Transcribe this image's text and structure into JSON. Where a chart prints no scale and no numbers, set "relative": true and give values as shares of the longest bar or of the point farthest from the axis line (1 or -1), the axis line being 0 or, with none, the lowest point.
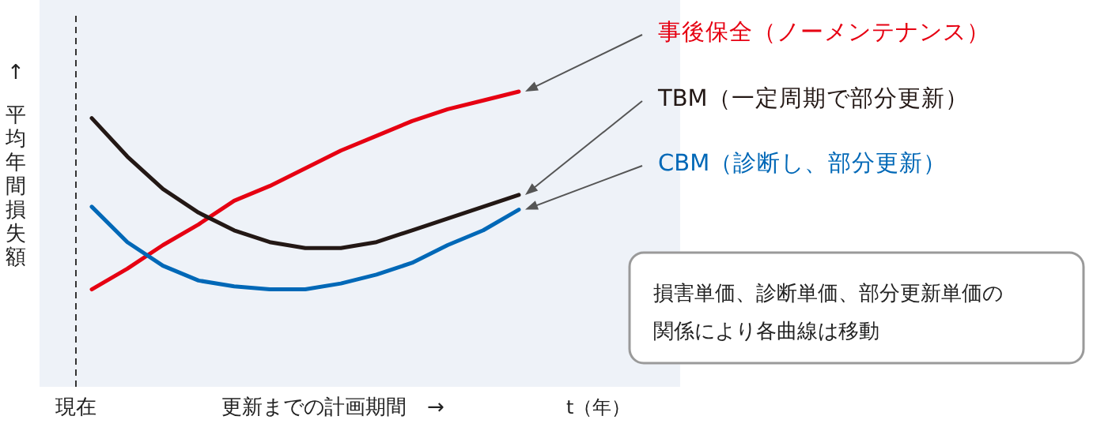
{
  "chart_data": {
    "type": "line",
    "relative": true,
    "ylabel": "↑ 平均年間損失額",
    "categories": [
      null,
      null,
      null,
      null,
      null,
      null,
      null,
      null,
      null,
      null,
      null,
      null,
      null
    ],
    "series": [
      {
        "name": "事後保全（ノーメンテナンス）",
        "color": "#e60012",
        "values": [
          0.33,
          0.4,
          0.48,
          0.55,
          0.63,
          0.68,
          0.74,
          0.8,
          0.85,
          0.9,
          0.94,
          0.97,
          1.0
        ]
      },
      {
        "name": "TBM（一定周期で部分更新）",
        "color": "#231815",
        "values": [
          0.91,
          0.78,
          0.67,
          0.59,
          0.53,
          0.49,
          0.47,
          0.47,
          0.49,
          0.53,
          0.57,
          0.61,
          0.65
        ]
      },
      {
        "name": "CBM（診断し、部分更新）",
        "color": "#0068b7",
        "values": [
          0.61,
          0.49,
          0.41,
          0.36,
          0.34,
          0.33,
          0.33,
          0.35,
          0.38,
          0.42,
          0.48,
          0.53,
          0.6
        ]
      }
    ],
    "annotations": [
      "現在",
      "更新までの計画期間　→",
      "t（年）",
      "損害単価、診断単価、部分更新単価の関係により各曲線は移動"
    ],
    "legend": false,
    "marker": "none",
    "line_style": "solid"
  }
}
